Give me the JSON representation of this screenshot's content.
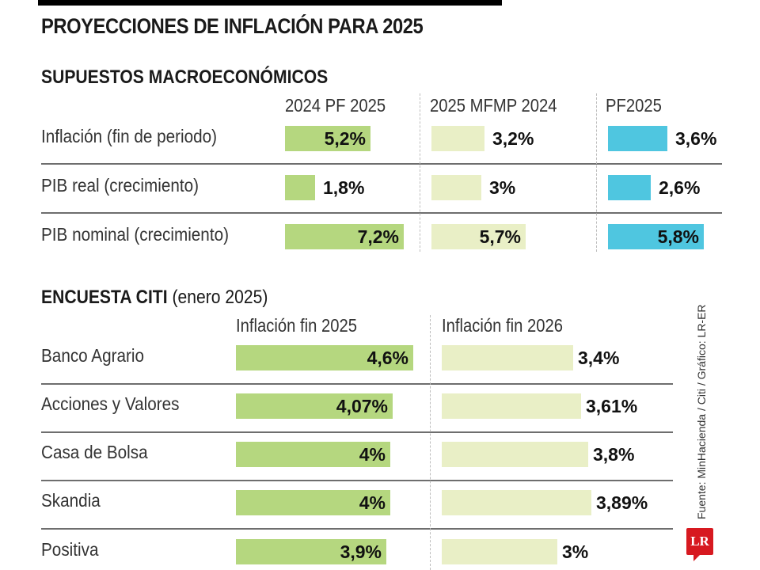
{
  "header": {
    "title": "PROYECCIONES DE INFLACIÓN PARA 2025"
  },
  "colors": {
    "pf2024": "#b5d77f",
    "mfmp": "#e9efc6",
    "pf2025": "#4fc6e0",
    "citi2025": "#b5d77f",
    "citi2026": "#e9efc6",
    "logo": "#d71920"
  },
  "chart_data": [
    {
      "type": "bar",
      "title": "SUPUESTOS MACROECONÓMICOS",
      "orientation": "horizontal",
      "categories": [
        "Inflación (fin de periodo)",
        "PIB real (crecimiento)",
        "PIB nominal (crecimiento)"
      ],
      "series": [
        {
          "name": "2024 PF 2025",
          "values": [
            5.2,
            1.8,
            7.2
          ],
          "labels": [
            "5,2%",
            "1,8%",
            "7,2%"
          ]
        },
        {
          "name": "2025 MFMP 2024",
          "values": [
            3.2,
            3.0,
            5.7
          ],
          "labels": [
            "3,2%",
            "3%",
            "5,7%"
          ]
        },
        {
          "name": "PF2025",
          "values": [
            3.6,
            2.6,
            5.8
          ],
          "labels": [
            "3,6%",
            "2,6%",
            "5,8%"
          ]
        }
      ],
      "unit": "%"
    },
    {
      "type": "bar",
      "title": "ENCUESTA CITI",
      "subtitle": "(enero 2025)",
      "orientation": "horizontal",
      "categories": [
        "Banco Agrario",
        "Acciones y Valores",
        "Casa de Bolsa",
        "Skandia",
        "Positiva"
      ],
      "series": [
        {
          "name": "Inflación fin 2025",
          "values": [
            4.6,
            4.07,
            4.0,
            4.0,
            3.9
          ],
          "labels": [
            "4,6%",
            "4,07%",
            "4%",
            "4%",
            "3,9%"
          ]
        },
        {
          "name": "Inflación fin 2026",
          "values": [
            3.4,
            3.61,
            3.8,
            3.89,
            3.0
          ],
          "labels": [
            "3,4%",
            "3,61%",
            "3,8%",
            "3,89%",
            "3%"
          ]
        }
      ],
      "unit": "%"
    }
  ],
  "footer": {
    "source": "Fuente: MinHacienda / Citi / Gráfico: LR-ER",
    "logo_text": "LR"
  }
}
